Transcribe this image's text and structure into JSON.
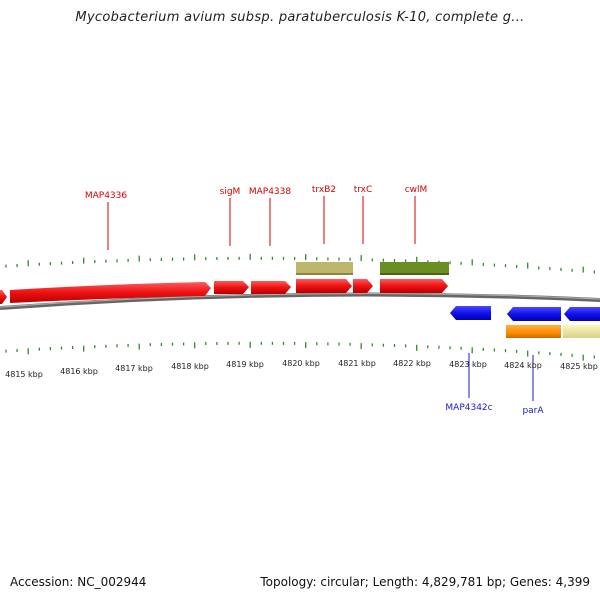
{
  "header": {
    "title": "Mycobacterium avium subsp. paratuberculosis K-10, complete g..."
  },
  "footer": {
    "accession": "Accession: NC_002944",
    "summary": "Topology: circular; Length: 4,829,781 bp; Genes: 4,399"
  },
  "colors": {
    "forward_gene": "#ee1111",
    "reverse_gene": "#1111ee",
    "rna_khaki": "#bdb76b",
    "rna_olive": "#6b8e23",
    "orange_gene": "#ff8c00",
    "pale_gene": "#f0e68c",
    "backbone": "#777777",
    "ticks": "#2e8b2e",
    "forward_label": "#d40000",
    "reverse_label": "#1a1ad0"
  },
  "axis": {
    "unit": "kbp",
    "ticks": [
      "4815 kbp",
      "4816 kbp",
      "4817 kbp",
      "4818 kbp",
      "4819 kbp",
      "4820 kbp",
      "4821 kbp",
      "4822 kbp",
      "4823 kbp",
      "4824 kbp",
      "4825 kbp"
    ]
  },
  "forward_labels": [
    {
      "name": "MAP4336"
    },
    {
      "name": "sigM"
    },
    {
      "name": "MAP4338"
    },
    {
      "name": "trxB2"
    },
    {
      "name": "trxC"
    },
    {
      "name": "cwlM"
    }
  ],
  "reverse_labels": [
    {
      "name": "MAP4342c"
    },
    {
      "name": "parA"
    }
  ]
}
